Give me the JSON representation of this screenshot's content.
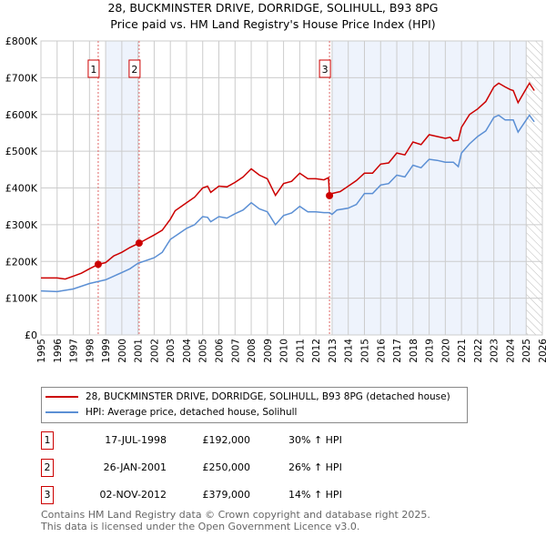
{
  "chart_data": {
    "type": "line",
    "title": "28, BUCKMINSTER DRIVE, DORRIDGE, SOLIHULL, B93 8PG",
    "subtitle": "Price paid vs. HM Land Registry's House Price Index (HPI)",
    "xlim": [
      1995,
      2026
    ],
    "ylim": [
      0,
      800000
    ],
    "x_ticks": [
      "1995",
      "1996",
      "1997",
      "1998",
      "1999",
      "2000",
      "2001",
      "2002",
      "2003",
      "2004",
      "2005",
      "2006",
      "2007",
      "2008",
      "2009",
      "2010",
      "2011",
      "2012",
      "2013",
      "2014",
      "2015",
      "2016",
      "2017",
      "2018",
      "2019",
      "2020",
      "2021",
      "2022",
      "2023",
      "2024",
      "2025",
      "2026"
    ],
    "y_ticks": [
      {
        "v": 0,
        "label": "£0"
      },
      {
        "v": 100000,
        "label": "£100K"
      },
      {
        "v": 200000,
        "label": "£200K"
      },
      {
        "v": 300000,
        "label": "£300K"
      },
      {
        "v": 400000,
        "label": "£400K"
      },
      {
        "v": 500000,
        "label": "£500K"
      },
      {
        "v": 600000,
        "label": "£600K"
      },
      {
        "v": 700000,
        "label": "£700K"
      },
      {
        "v": 800000,
        "label": "£800K"
      }
    ],
    "grid": true,
    "shaded_ranges": [
      [
        1999.0,
        2001.07
      ],
      [
        2013.0,
        2025.0
      ]
    ],
    "hatched_range": [
      2025.0,
      2026
    ],
    "series": [
      {
        "name": "28, BUCKMINSTER DRIVE, DORRIDGE, SOLIHULL, B93 8PG (detached house)",
        "color": "#cc0000",
        "points": [
          [
            1995,
            155
          ],
          [
            1996,
            155
          ],
          [
            1996.5,
            152
          ],
          [
            1997,
            160
          ],
          [
            1997.5,
            168
          ],
          [
            1998,
            180
          ],
          [
            1998.54,
            192
          ],
          [
            1999,
            197
          ],
          [
            1999.5,
            215
          ],
          [
            2000,
            225
          ],
          [
            2000.5,
            238
          ],
          [
            2001.07,
            250
          ],
          [
            2001.5,
            260
          ],
          [
            2002,
            272
          ],
          [
            2002.5,
            285
          ],
          [
            2003,
            315
          ],
          [
            2003.3,
            338
          ],
          [
            2004,
            360
          ],
          [
            2004.5,
            375
          ],
          [
            2005,
            400
          ],
          [
            2005.3,
            405
          ],
          [
            2005.5,
            388
          ],
          [
            2006,
            405
          ],
          [
            2006.5,
            403
          ],
          [
            2007,
            415
          ],
          [
            2007.5,
            430
          ],
          [
            2008,
            452
          ],
          [
            2008.5,
            435
          ],
          [
            2009,
            425
          ],
          [
            2009.5,
            380
          ],
          [
            2010,
            412
          ],
          [
            2010.5,
            418
          ],
          [
            2011,
            440
          ],
          [
            2011.5,
            425
          ],
          [
            2012,
            425
          ],
          [
            2012.5,
            422
          ],
          [
            2012.78,
            428
          ],
          [
            2012.84,
            379
          ],
          [
            2013,
            385
          ],
          [
            2013.5,
            390
          ],
          [
            2014,
            405
          ],
          [
            2014.5,
            420
          ],
          [
            2015,
            440
          ],
          [
            2015.5,
            440
          ],
          [
            2016,
            465
          ],
          [
            2016.5,
            468
          ],
          [
            2017,
            495
          ],
          [
            2017.5,
            490
          ],
          [
            2018,
            525
          ],
          [
            2018.5,
            518
          ],
          [
            2019,
            545
          ],
          [
            2019.5,
            540
          ],
          [
            2020,
            535
          ],
          [
            2020.3,
            538
          ],
          [
            2020.5,
            528
          ],
          [
            2020.8,
            530
          ],
          [
            2021,
            565
          ],
          [
            2021.5,
            600
          ],
          [
            2022,
            615
          ],
          [
            2022.5,
            635
          ],
          [
            2023,
            675
          ],
          [
            2023.3,
            685
          ],
          [
            2023.7,
            675
          ],
          [
            2024,
            668
          ],
          [
            2024.2,
            665
          ],
          [
            2024.5,
            632
          ],
          [
            2024.8,
            655
          ],
          [
            2025.2,
            685
          ],
          [
            2025.5,
            665
          ]
        ]
      },
      {
        "name": "HPI: Average price, detached house, Solihull",
        "color": "#5b8fd4",
        "points": [
          [
            1995,
            120
          ],
          [
            1996,
            118
          ],
          [
            1997,
            125
          ],
          [
            1998,
            140
          ],
          [
            1999,
            150
          ],
          [
            1999.5,
            160
          ],
          [
            2000,
            170
          ],
          [
            2000.5,
            180
          ],
          [
            2001,
            195
          ],
          [
            2002,
            210
          ],
          [
            2002.5,
            225
          ],
          [
            2003,
            260
          ],
          [
            2003.5,
            275
          ],
          [
            2004,
            290
          ],
          [
            2004.5,
            300
          ],
          [
            2005,
            322
          ],
          [
            2005.3,
            320
          ],
          [
            2005.5,
            308
          ],
          [
            2006,
            322
          ],
          [
            2006.5,
            318
          ],
          [
            2007,
            330
          ],
          [
            2007.5,
            340
          ],
          [
            2008,
            360
          ],
          [
            2008.5,
            343
          ],
          [
            2009,
            335
          ],
          [
            2009.5,
            300
          ],
          [
            2010,
            325
          ],
          [
            2010.5,
            332
          ],
          [
            2011,
            350
          ],
          [
            2011.5,
            335
          ],
          [
            2012,
            335
          ],
          [
            2012.5,
            333
          ],
          [
            2012.84,
            333
          ],
          [
            2013,
            328
          ],
          [
            2013.3,
            340
          ],
          [
            2014,
            345
          ],
          [
            2014.5,
            355
          ],
          [
            2015,
            385
          ],
          [
            2015.5,
            385
          ],
          [
            2016,
            408
          ],
          [
            2016.5,
            412
          ],
          [
            2017,
            435
          ],
          [
            2017.5,
            430
          ],
          [
            2018,
            462
          ],
          [
            2018.5,
            455
          ],
          [
            2019,
            478
          ],
          [
            2019.5,
            475
          ],
          [
            2020,
            470
          ],
          [
            2020.5,
            470
          ],
          [
            2020.8,
            458
          ],
          [
            2021,
            495
          ],
          [
            2021.5,
            520
          ],
          [
            2022,
            540
          ],
          [
            2022.5,
            555
          ],
          [
            2023,
            592
          ],
          [
            2023.3,
            598
          ],
          [
            2023.7,
            585
          ],
          [
            2024.2,
            585
          ],
          [
            2024.5,
            552
          ],
          [
            2025.2,
            598
          ],
          [
            2025.5,
            580
          ]
        ]
      }
    ],
    "point_unit": "thousand GBP",
    "sales": [
      {
        "id": "1",
        "x": 1998.54,
        "y": 192,
        "date": "17-JUL-1998",
        "price": "£192,000",
        "hpi": "30% ↑ HPI"
      },
      {
        "id": "2",
        "x": 2001.07,
        "y": 250,
        "date": "26-JAN-2001",
        "price": "£250,000",
        "hpi": "26% ↑ HPI"
      },
      {
        "id": "3",
        "x": 2012.84,
        "y": 379,
        "date": "02-NOV-2012",
        "price": "£379,000",
        "hpi": "14% ↑ HPI"
      }
    ],
    "legend_placement": "below"
  },
  "footer": {
    "line1": "Contains HM Land Registry data © Crown copyright and database right 2025.",
    "line2": "This data is licensed under the Open Government Licence v3.0."
  }
}
